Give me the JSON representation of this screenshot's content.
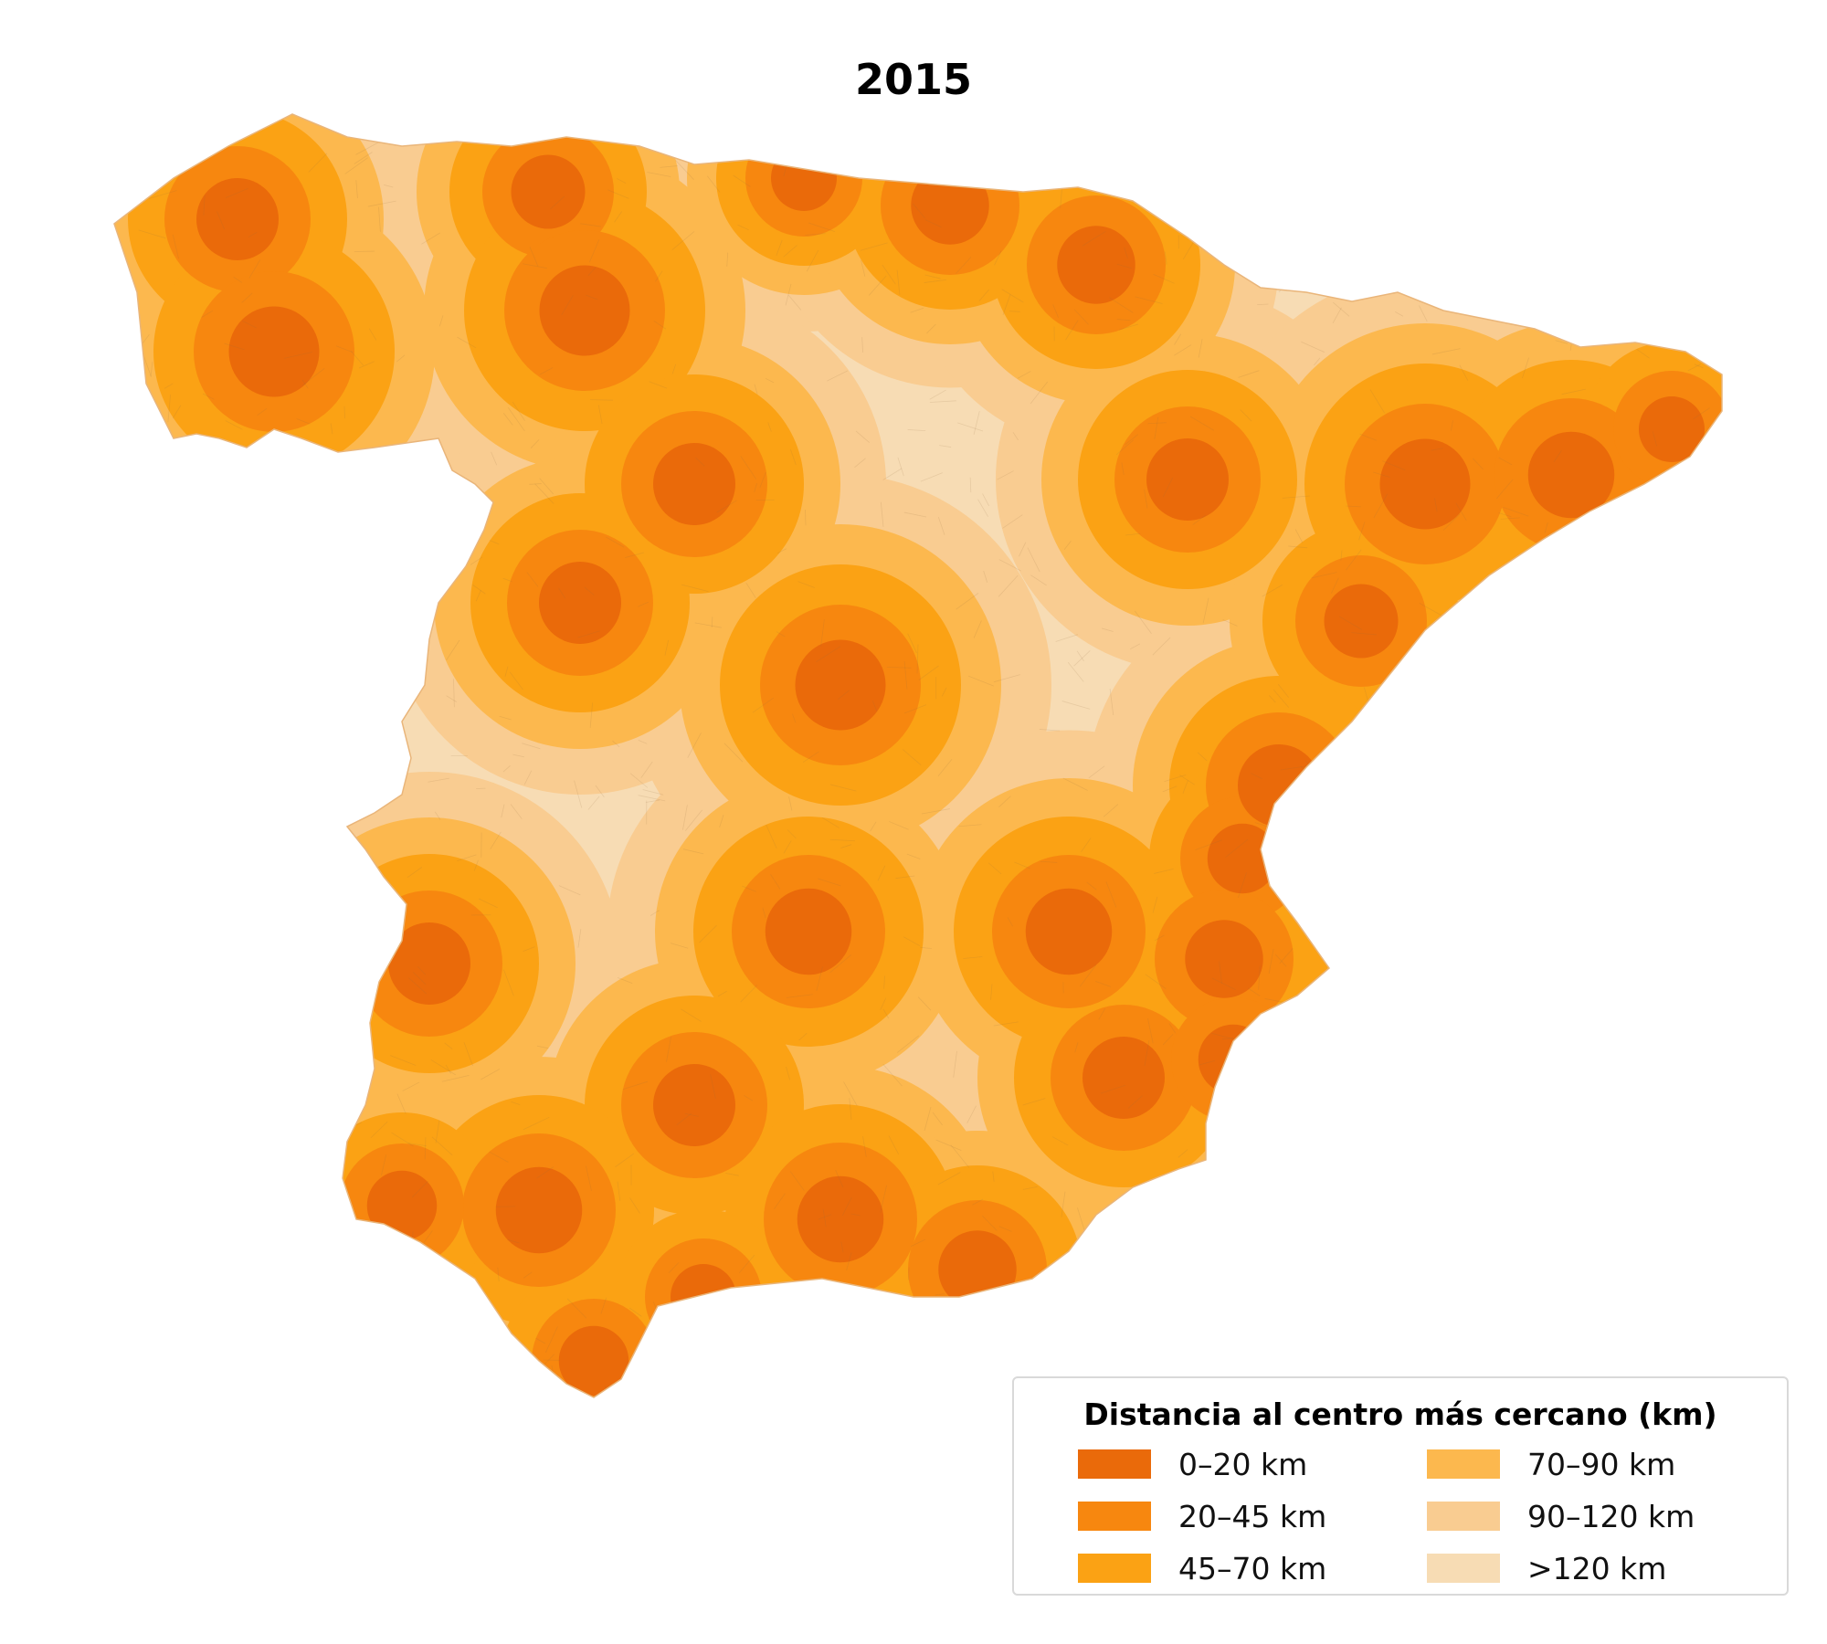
{
  "title": "2015",
  "legend": {
    "title": "Distancia al centro más cercano (km)",
    "items": [
      {
        "label": "0–20 km",
        "color": "#ea6a0a"
      },
      {
        "label": "20–45 km",
        "color": "#f7870f"
      },
      {
        "label": "45–70 km",
        "color": "#fba214"
      },
      {
        "label": "70–90 km",
        "color": "#fcb84e"
      },
      {
        "label": "90–120 km",
        "color": "#f9cc91"
      },
      {
        "label": ">120 km",
        "color": "#f7dcb4"
      }
    ]
  }
}
